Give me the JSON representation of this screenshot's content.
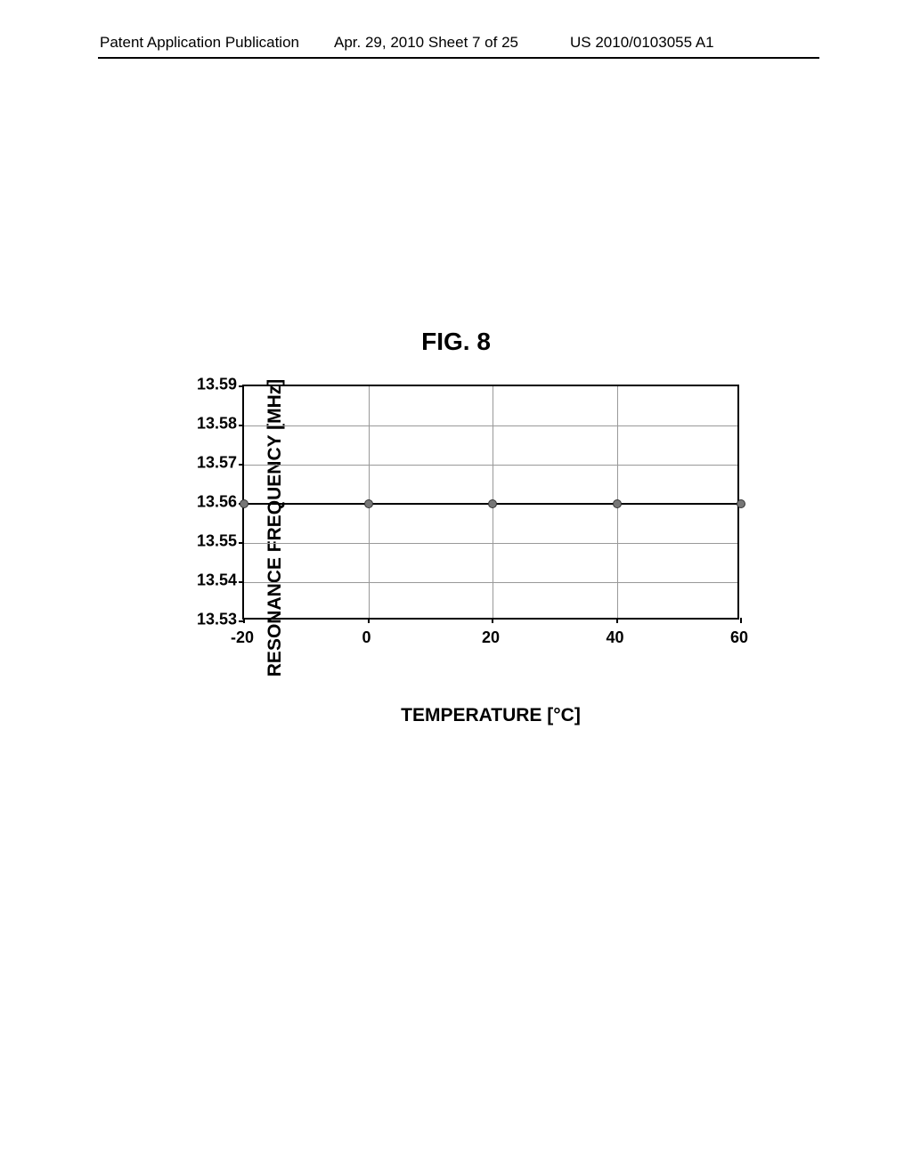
{
  "header": {
    "left": "Patent Application Publication",
    "center": "Apr. 29, 2010  Sheet 7 of 25",
    "right": "US 2010/0103055 A1"
  },
  "figure_title": "FIG. 8",
  "chart": {
    "type": "line",
    "x_label": "TEMPERATURE  [°C]",
    "y_label": "RESONANCE FREQUENCY  [MHz]",
    "x_values": [
      -20,
      0,
      20,
      40,
      60
    ],
    "y_values": [
      13.56,
      13.56,
      13.56,
      13.56,
      13.56
    ],
    "x_ticks": [
      -20,
      0,
      20,
      40,
      60
    ],
    "y_ticks": [
      13.53,
      13.54,
      13.55,
      13.56,
      13.57,
      13.58,
      13.59
    ],
    "xlim": [
      -20,
      60
    ],
    "ylim": [
      13.53,
      13.59
    ],
    "marker_color": "#777777",
    "marker_border": "#333333",
    "marker_size": 10,
    "line_color": "#000000",
    "line_width": 2,
    "grid_color": "#999999",
    "border_color": "#000000",
    "background_color": "#ffffff",
    "title_fontsize": 28,
    "label_fontsize": 21,
    "tick_fontsize": 18
  }
}
